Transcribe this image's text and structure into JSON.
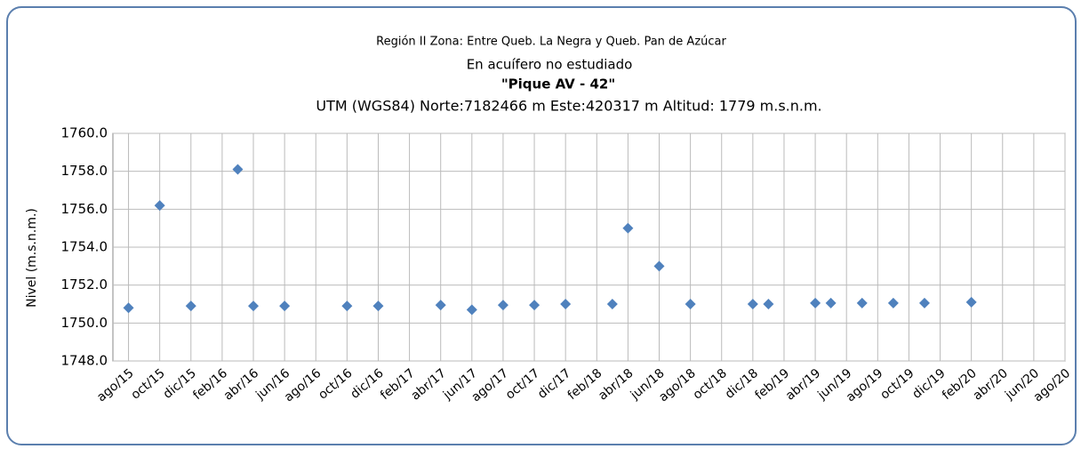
{
  "chart_data": {
    "type": "scatter",
    "title": "Región II  Zona: Entre Queb. La Negra y Queb. Pan de Azúcar",
    "subtitle": "En acuífero no estudiado",
    "well_name": "\"Pique AV - 42\"",
    "location": "UTM (WGS84) Norte:7182466 m   Este:420317 m Altitud: 1779 m.s.n.m.",
    "y_label": "Nivel (m.s.n.m.)",
    "color": "#4f81bd",
    "grid": true,
    "x": [
      "2015-08",
      "2015-10",
      "2015-12",
      "2016-03",
      "2016-04",
      "2016-06",
      "2016-10",
      "2016-12",
      "2017-04",
      "2017-06",
      "2017-08",
      "2017-10",
      "2017-12",
      "2018-03",
      "2018-04",
      "2018-06",
      "2018-08",
      "2018-12",
      "2019-01",
      "2019-04",
      "2019-05",
      "2019-07",
      "2019-09",
      "2019-11",
      "2020-02"
    ],
    "values": [
      1750.8,
      1756.2,
      1750.9,
      1758.1,
      1750.9,
      1750.9,
      1750.9,
      1750.9,
      1750.95,
      1750.7,
      1750.95,
      1750.95,
      1751.0,
      1751.0,
      1755.0,
      1753.0,
      1751.0,
      1751.0,
      1751.0,
      1751.05,
      1751.05,
      1751.05,
      1751.05,
      1751.05,
      1751.1
    ],
    "xlim": [
      "2015-07",
      "2020-08"
    ],
    "xticks": [
      {
        "value": "2015-08",
        "label": "ago/15"
      },
      {
        "value": "2015-10",
        "label": "oct/15"
      },
      {
        "value": "2015-12",
        "label": "dic/15"
      },
      {
        "value": "2016-02",
        "label": "feb/16"
      },
      {
        "value": "2016-04",
        "label": "abr/16"
      },
      {
        "value": "2016-06",
        "label": "jun/16"
      },
      {
        "value": "2016-08",
        "label": "ago/16"
      },
      {
        "value": "2016-10",
        "label": "oct/16"
      },
      {
        "value": "2016-12",
        "label": "dic/16"
      },
      {
        "value": "2017-02",
        "label": "feb/17"
      },
      {
        "value": "2017-04",
        "label": "abr/17"
      },
      {
        "value": "2017-06",
        "label": "jun/17"
      },
      {
        "value": "2017-08",
        "label": "ago/17"
      },
      {
        "value": "2017-10",
        "label": "oct/17"
      },
      {
        "value": "2017-12",
        "label": "dic/17"
      },
      {
        "value": "2018-02",
        "label": "feb/18"
      },
      {
        "value": "2018-04",
        "label": "abr/18"
      },
      {
        "value": "2018-06",
        "label": "jun/18"
      },
      {
        "value": "2018-08",
        "label": "ago/18"
      },
      {
        "value": "2018-10",
        "label": "oct/18"
      },
      {
        "value": "2018-12",
        "label": "dic/18"
      },
      {
        "value": "2019-02",
        "label": "feb/19"
      },
      {
        "value": "2019-04",
        "label": "abr/19"
      },
      {
        "value": "2019-06",
        "label": "jun/19"
      },
      {
        "value": "2019-08",
        "label": "ago/19"
      },
      {
        "value": "2019-10",
        "label": "oct/19"
      },
      {
        "value": "2019-12",
        "label": "dic/19"
      },
      {
        "value": "2020-02",
        "label": "feb/20"
      },
      {
        "value": "2020-04",
        "label": "abr/20"
      },
      {
        "value": "2020-06",
        "label": "jun/20"
      },
      {
        "value": "2020-08",
        "label": "ago/20"
      }
    ],
    "ylim": [
      1748,
      1760
    ],
    "yticks": [
      {
        "value": 1748,
        "label": "1748.0"
      },
      {
        "value": 1750,
        "label": "1750.0"
      },
      {
        "value": 1752,
        "label": "1752.0"
      },
      {
        "value": 1754,
        "label": "1754.0"
      },
      {
        "value": 1756,
        "label": "1756.0"
      },
      {
        "value": 1758,
        "label": "1758.0"
      },
      {
        "value": 1760,
        "label": "1760.0"
      }
    ]
  }
}
